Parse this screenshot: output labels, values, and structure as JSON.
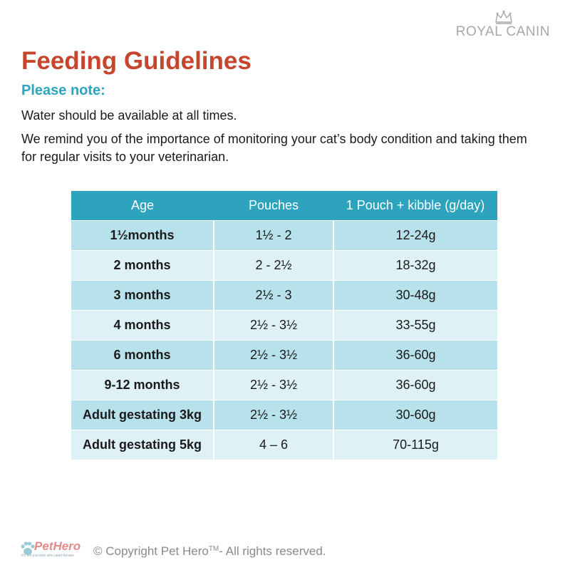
{
  "brand": {
    "logo_text": "ROYAL CANIN",
    "logo_icon": "crown-icon"
  },
  "title": "Feeding Guidelines",
  "subtitle": "Please note:",
  "paragraphs": [
    "Water should be available at all times.",
    "We remind you of the importance of monitoring your cat’s body condition and taking them for regular visits to your veterinarian."
  ],
  "table": {
    "headers": [
      "Age",
      "Pouches",
      "1 Pouch + kibble (g/day)"
    ],
    "rows": [
      [
        "1½months",
        "1½ - 2",
        "12-24g"
      ],
      [
        "2 months",
        "2 - 2½",
        "18-32g"
      ],
      [
        "3 months",
        "2½ - 3",
        "30-48g"
      ],
      [
        "4 months",
        "2½ - 3½",
        "33-55g"
      ],
      [
        "6 months",
        "2½ - 3½",
        "36-60g"
      ],
      [
        "9-12 months",
        "2½ - 3½",
        "36-60g"
      ],
      [
        "Adult gestating 3kg",
        "2½ - 3½",
        "30-60g"
      ],
      [
        "Adult gestating 5kg",
        "4 – 6",
        "70-115g"
      ]
    ]
  },
  "footer": {
    "logo_text": "PetHero",
    "logo_tagline": "It's not just kids who need heroes",
    "logo_icon": "paw-icon",
    "copyright_prefix": "© Copyright Pet Hero",
    "trademark": "TM",
    "copyright_suffix": "- All rights reserved."
  },
  "colors": {
    "title": "#c6452c",
    "subtitle": "#2da5be",
    "table_header": "#2ea3bd",
    "row_dark": "#b7e2ec",
    "row_light": "#def1f6"
  }
}
